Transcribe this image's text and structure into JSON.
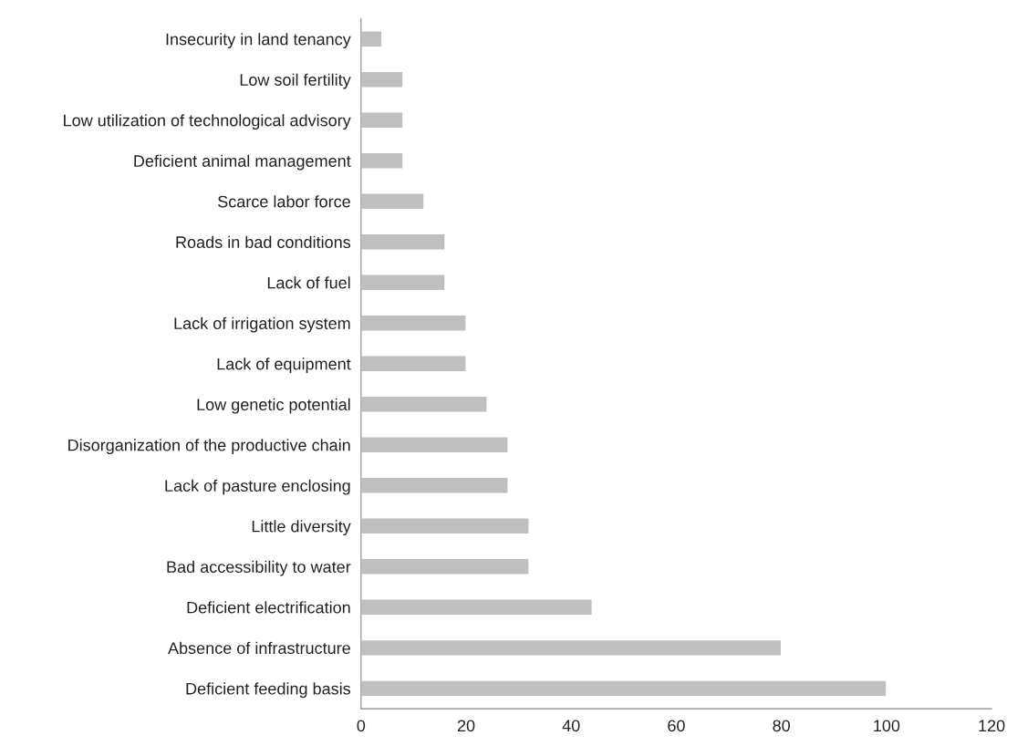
{
  "chart_data": {
    "type": "bar",
    "orientation": "horizontal",
    "categories": [
      "Insecurity in land tenancy",
      "Low soil fertility",
      "Low utilization of technological advisory",
      "Deficient animal management",
      "Scarce labor force",
      "Roads in bad conditions",
      "Lack of fuel",
      "Lack of irrigation system",
      "Lack of equipment",
      "Low genetic potential",
      "Disorganization of the productive chain",
      "Lack of pasture enclosing",
      "Little diversity",
      "Bad accessibility to water",
      "Deficient electrification",
      "Absence of infrastructure",
      "Deficient feeding basis"
    ],
    "values": [
      4,
      8,
      8,
      8,
      12,
      16,
      16,
      20,
      20,
      24,
      28,
      28,
      32,
      32,
      44,
      80,
      100
    ],
    "color": "#bfbfbf",
    "xlim": [
      0,
      120
    ],
    "xticks": [
      0,
      20,
      40,
      60,
      80,
      100,
      120
    ],
    "grid": false,
    "legend": false
  }
}
